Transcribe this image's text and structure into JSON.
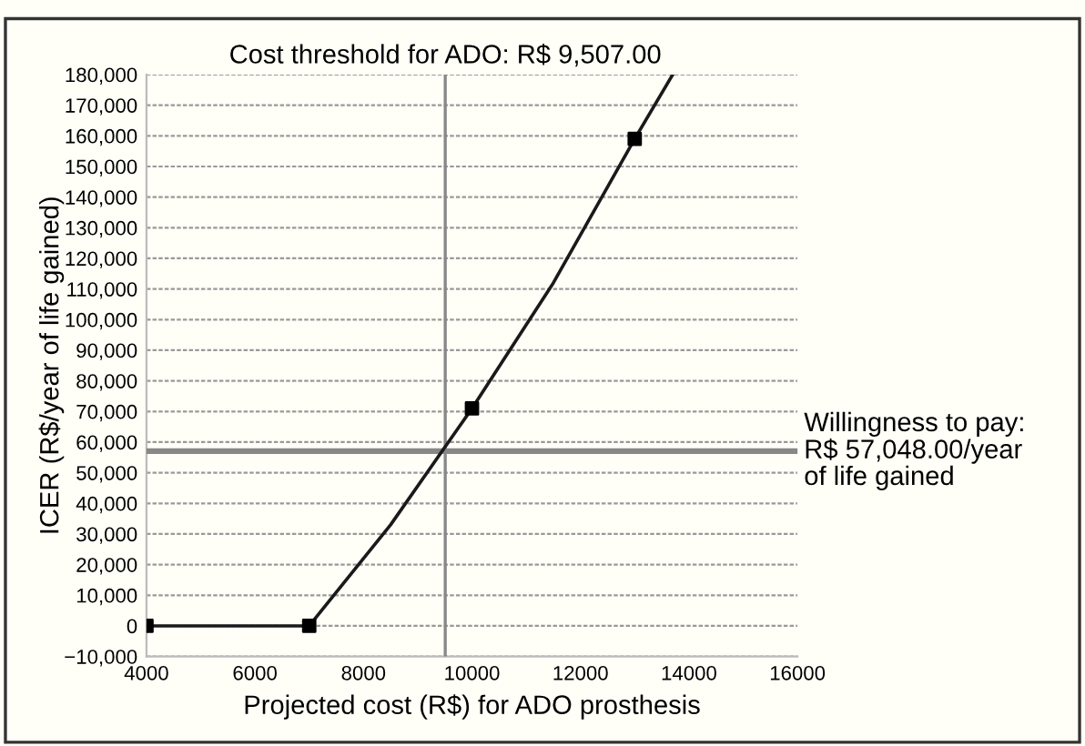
{
  "chart_data": {
    "type": "line",
    "xlabel": "Projected cost (R$) for ADO prosthesis",
    "ylabel": "ICER (R$/year of life gained)",
    "series": [
      {
        "color": "#1a1a1a",
        "marker": "none",
        "x": [
          4000,
          7000,
          8500,
          10000,
          11500,
          13000,
          13700
        ],
        "values": [
          0,
          0,
          33000,
          71000,
          112000,
          159000,
          180000
        ]
      },
      {
        "type": "scatter",
        "color": "#000000",
        "marker": "square",
        "x": [
          4000,
          7000,
          10000,
          13000
        ],
        "values": [
          0,
          0,
          71000,
          159000
        ]
      }
    ],
    "xlim": [
      4000,
      16000
    ],
    "xticks": [
      4000,
      6000,
      8000,
      10000,
      12000,
      14000,
      16000
    ],
    "ylim": [
      -10000,
      180000
    ],
    "yticks": [
      {
        "value": -10000,
        "label": "−10,000"
      },
      {
        "value": 0,
        "label": "0"
      },
      {
        "value": 10000,
        "label": "10,000"
      },
      {
        "value": 20000,
        "label": "20,000"
      },
      {
        "value": 30000,
        "label": "30,000"
      },
      {
        "value": 40000,
        "label": "40,000"
      },
      {
        "value": 50000,
        "label": "50,000"
      },
      {
        "value": 60000,
        "label": "60,000"
      },
      {
        "value": 70000,
        "label": "70,000"
      },
      {
        "value": 80000,
        "label": "80,000"
      },
      {
        "value": 90000,
        "label": "90,000"
      },
      {
        "value": 100000,
        "label": "100,000"
      },
      {
        "value": 110000,
        "label": "110,000"
      },
      {
        "value": 120000,
        "label": "120,000"
      },
      {
        "value": 130000,
        "label": "130,000"
      },
      {
        "value": 140000,
        "label": "140,000"
      },
      {
        "value": 150000,
        "label": "150,000"
      },
      {
        "value": 160000,
        "label": "160,000"
      },
      {
        "value": 170000,
        "label": "170,000"
      },
      {
        "value": 180000,
        "label": "180,000"
      }
    ],
    "grid": "y",
    "ref_lines": [
      {
        "axis": "x",
        "value": 9507,
        "label": "Cost threshold for ADO: R$ 9,507.00",
        "color": "#888888"
      },
      {
        "axis": "y",
        "value": 57048,
        "label": "Willingness to pay:\nR$ 57,048.00/year\nof life gained",
        "color": "#888888"
      }
    ]
  }
}
